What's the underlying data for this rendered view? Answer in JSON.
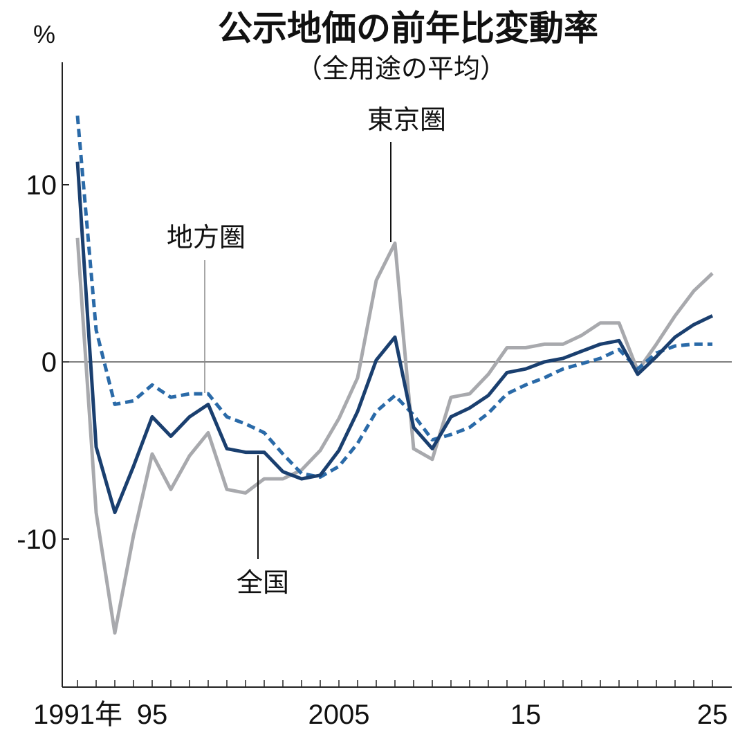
{
  "chart_data": {
    "type": "line",
    "title": "公示地価の前年比変動率",
    "subtitle": "（全用途の平均）",
    "ylabel": "%",
    "ylim": [
      -18,
      18
    ],
    "yticks": [
      10,
      0,
      -10
    ],
    "ytick_labels": [
      "10",
      "0",
      "-10"
    ],
    "x": [
      1991,
      1992,
      1993,
      1994,
      1995,
      1996,
      1997,
      1998,
      1999,
      2000,
      2001,
      2002,
      2003,
      2004,
      2005,
      2006,
      2007,
      2008,
      2009,
      2010,
      2011,
      2012,
      2013,
      2014,
      2015,
      2016,
      2017,
      2018,
      2019,
      2020,
      2021,
      2022,
      2023,
      2024,
      2025
    ],
    "xticks": [
      1991,
      1995,
      2005,
      2015,
      2025
    ],
    "xtick_labels": [
      "1991年",
      "95",
      "2005",
      "15",
      "25"
    ],
    "series": [
      {
        "name": "東京圏",
        "style": "solid",
        "color": "#a8a9ad",
        "values": [
          7.0,
          -8.5,
          -15.3,
          -9.8,
          -5.2,
          -7.2,
          -5.3,
          -4.0,
          -7.2,
          -7.4,
          -6.6,
          -6.6,
          -6.1,
          -5.0,
          -3.2,
          -0.9,
          4.6,
          6.7,
          -4.9,
          -5.5,
          -2.0,
          -1.8,
          -0.7,
          0.8,
          0.8,
          1.0,
          1.0,
          1.5,
          2.2,
          2.2,
          -0.5,
          1.0,
          2.6,
          4.0,
          5.0
        ]
      },
      {
        "name": "全国",
        "style": "solid",
        "color": "#1a3f6f",
        "values": [
          11.3,
          -4.8,
          -8.5,
          -5.9,
          -3.1,
          -4.2,
          -3.1,
          -2.4,
          -4.9,
          -5.1,
          -5.1,
          -6.2,
          -6.6,
          -6.4,
          -5.0,
          -2.8,
          0.1,
          1.4,
          -3.7,
          -4.9,
          -3.1,
          -2.6,
          -1.9,
          -0.6,
          -0.4,
          0.0,
          0.2,
          0.6,
          1.0,
          1.2,
          -0.7,
          0.3,
          1.4,
          2.1,
          2.6
        ]
      },
      {
        "name": "地方圏",
        "style": "dashed",
        "color": "#2a6aa8",
        "values": [
          13.9,
          1.8,
          -2.4,
          -2.2,
          -1.3,
          -2.0,
          -1.8,
          -1.8,
          -3.1,
          -3.5,
          -4.0,
          -5.2,
          -6.3,
          -6.5,
          -5.9,
          -4.6,
          -2.8,
          -1.9,
          -3.0,
          -4.4,
          -4.1,
          -3.7,
          -2.9,
          -1.8,
          -1.3,
          -0.9,
          -0.4,
          -0.1,
          0.2,
          0.7,
          -0.4,
          0.5,
          0.9,
          1.0,
          1.0
        ]
      }
    ],
    "grid": false,
    "legend": "inline callouts"
  }
}
